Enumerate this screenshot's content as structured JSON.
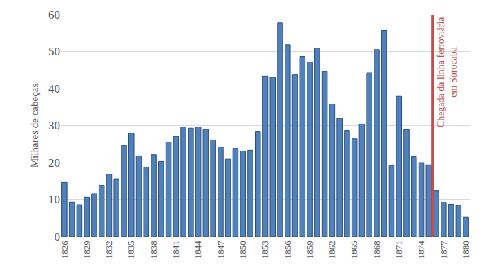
{
  "chart_data": {
    "type": "bar",
    "y_label": "Milhares de cabeças",
    "categories": [
      "1826",
      null,
      null,
      "1829",
      null,
      null,
      "1832",
      null,
      null,
      "1835",
      null,
      null,
      "1838",
      null,
      null,
      "1841",
      null,
      null,
      "1844",
      null,
      null,
      "1847",
      null,
      null,
      "1850",
      null,
      null,
      "1853",
      null,
      null,
      "1856",
      null,
      null,
      "1859",
      null,
      null,
      "1862",
      null,
      null,
      "1865",
      null,
      null,
      "1868",
      null,
      null,
      "1871",
      null,
      null,
      "1874",
      null,
      null,
      "1877",
      null,
      null,
      "1880"
    ],
    "values": [
      14.7,
      9.3,
      8.6,
      10.6,
      11.6,
      13.8,
      16.9,
      15.5,
      24.6,
      27.9,
      21.8,
      18.8,
      22.1,
      20.3,
      25.5,
      27.1,
      29.6,
      29.3,
      29.6,
      29.0,
      26.1,
      24.2,
      20.9,
      23.8,
      23.1,
      23.3,
      28.3,
      43.3,
      43.0,
      57.8,
      51.8,
      43.8,
      48.7,
      47.2,
      50.9,
      44.6,
      35.8,
      32.0,
      28.7,
      26.4,
      30.4,
      44.3,
      50.5,
      55.6,
      19.2,
      37.9,
      28.9,
      21.6,
      20.0,
      19.4,
      12.4,
      9.2,
      8.7,
      8.4,
      5.2
    ],
    "color": "#4f81bd",
    "ylim": [
      0,
      60
    ],
    "yticks": [
      0,
      10,
      20,
      30,
      40,
      50,
      60
    ],
    "grid": true,
    "annotations": [
      {
        "text": [
          "Chegada da linha ferroviária",
          "em Sorocaba"
        ],
        "after_index": 49,
        "color": "#c0504d"
      }
    ]
  }
}
